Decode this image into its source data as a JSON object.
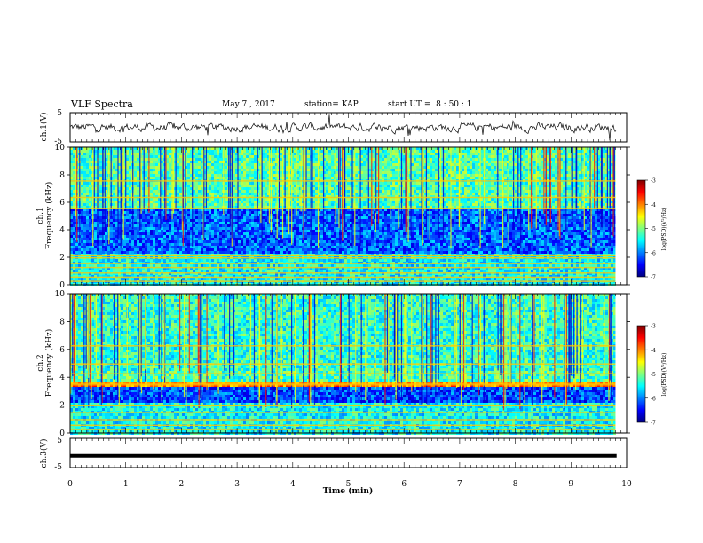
{
  "header": {
    "title": "VLF Spectra",
    "date": "May 7 , 2017",
    "station": "station= KAP",
    "start": "start UT =  8 : 50 : 1"
  },
  "chart_data": [
    {
      "type": "line",
      "panel": "ch.1 waveform",
      "ylabel": "ch.1(V)",
      "ylim": [
        -5,
        5
      ],
      "yticks": [
        "5",
        "-5"
      ],
      "xlim": [
        0,
        10
      ],
      "note_values": "noisy waveform near 0 V with amplitude ~±2 V, ending at ~9.8 min"
    },
    {
      "type": "heatmap",
      "panel": "ch.1 spectrogram",
      "ylabel": "ch.1\nFrequency (kHz)",
      "ylabel_line1": "ch.1",
      "ylabel_line2": "Frequency (kHz)",
      "ylim": [
        0,
        10
      ],
      "yticks": [
        "0",
        "2",
        "4",
        "6",
        "8",
        "10"
      ],
      "xlim": [
        0,
        10
      ],
      "data_end_min": 9.8,
      "colorbar": {
        "label": "log(PSD)(V²/Hz)",
        "range": [
          -7,
          -3
        ],
        "ticks": [
          "-3",
          "-4",
          "-5",
          "-6",
          "-7"
        ]
      }
    },
    {
      "type": "heatmap",
      "panel": "ch.2 spectrogram",
      "ylabel_line1": "ch.2",
      "ylabel_line2": "Frequency (kHz)",
      "ylim": [
        0,
        10
      ],
      "yticks": [
        "0",
        "2",
        "4",
        "6",
        "8",
        "10"
      ],
      "xlim": [
        0,
        10
      ],
      "data_end_min": 9.8,
      "colorbar": {
        "label": "log(PSD)(V²/Hz)",
        "range": [
          -7,
          -3
        ],
        "ticks": [
          "-3",
          "-4",
          "-5",
          "-6",
          "-7"
        ]
      }
    },
    {
      "type": "line",
      "panel": "ch.3 waveform",
      "ylabel": "ch.3(V)",
      "ylim": [
        -5,
        5
      ],
      "yticks": [
        "5",
        "-5"
      ],
      "xlim": [
        0,
        10
      ],
      "level": -1,
      "note_values": "flat thick line at about -1 V, ending at ~9.8 min"
    }
  ],
  "xaxis": {
    "label": "Time (min)",
    "ticks": [
      "0",
      "1",
      "2",
      "3",
      "4",
      "5",
      "6",
      "7",
      "8",
      "9",
      "10"
    ]
  },
  "colorbar_label": "log(PSD)(V²/Hz)"
}
